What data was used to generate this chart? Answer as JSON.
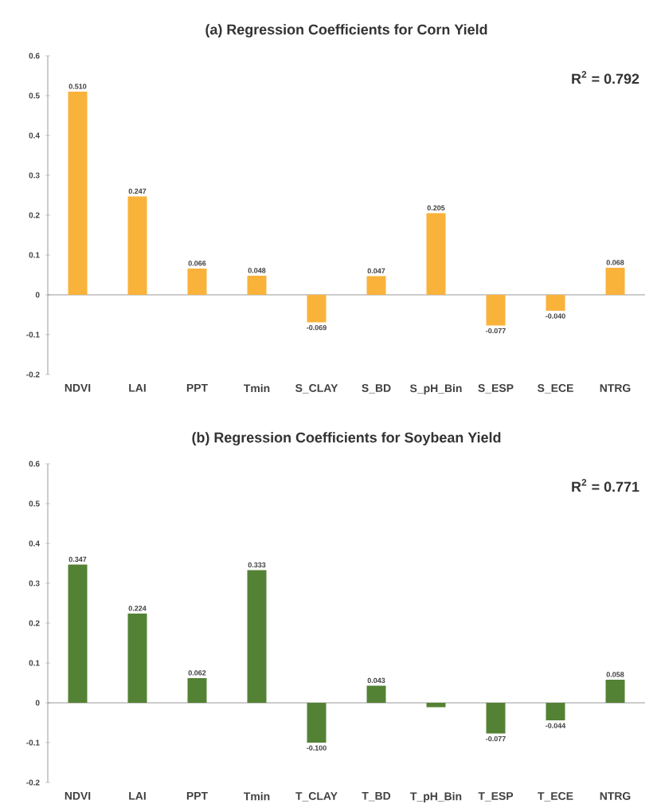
{
  "chart_data": [
    {
      "type": "bar",
      "title": "(a) Regression Coefficients for Corn Yield",
      "categories": [
        "NDVI",
        "LAI",
        "PPT",
        "Tmin",
        "S_CLAY",
        "S_BD",
        "S_pH_Bin",
        "S_ESP",
        "S_ECE",
        "NTRG"
      ],
      "values": [
        0.51,
        0.247,
        0.066,
        0.048,
        -0.069,
        0.047,
        0.205,
        -0.077,
        -0.04,
        0.068
      ],
      "value_labels": [
        "0.510",
        "0.247",
        "0.066",
        "0.048",
        "-0.069",
        "0.047",
        "0.205",
        "-0.077",
        "-0.040",
        "0.068"
      ],
      "color": "#f9b23a",
      "ylim": [
        -0.2,
        0.6
      ],
      "yticks": [
        -0.2,
        -0.1,
        0,
        0.1,
        0.2,
        0.3,
        0.4,
        0.5,
        0.6
      ],
      "annotations": [
        "R$^{2}$ = 0.792"
      ]
    },
    {
      "type": "bar",
      "title": "(b) Regression Coefficients for Soybean Yield",
      "categories": [
        "NDVI",
        "LAI",
        "PPT",
        "Tmin",
        "T_CLAY",
        "T_BD",
        "T_pH_Bin",
        "T_ESP",
        "T_ECE",
        "NTRG"
      ],
      "values": [
        0.347,
        0.224,
        0.062,
        0.333,
        -0.1,
        0.043,
        -0.011,
        -0.077,
        -0.044,
        0.058
      ],
      "value_labels": [
        "0.347",
        "0.224",
        "0.062",
        "0.333",
        "-0.100",
        "0.043",
        null,
        "-0.077",
        "-0.044",
        "0.058"
      ],
      "color": "#548235",
      "ylim": [
        -0.2,
        0.6
      ],
      "yticks": [
        -0.2,
        -0.1,
        0,
        0.1,
        0.2,
        0.3,
        0.4,
        0.5,
        0.6
      ],
      "annotations": [
        "R$^{2}$ = 0.771"
      ]
    }
  ]
}
